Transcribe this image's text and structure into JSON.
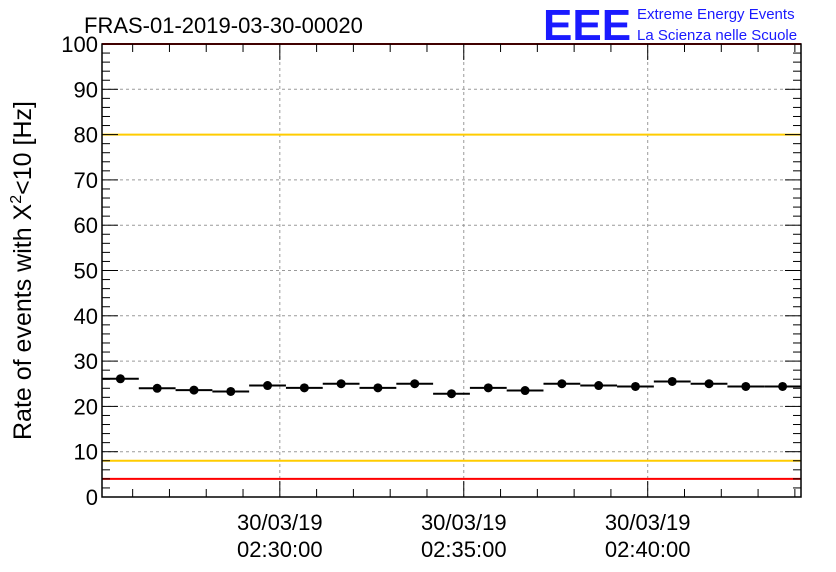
{
  "chart_data": {
    "type": "scatter",
    "title": "FRAS-01-2019-03-30-00020",
    "ylabel_main": "Rate of events with X",
    "ylabel_sup": "2",
    "ylabel_tail": "<10 [Hz]",
    "ylim": [
      0,
      100
    ],
    "yticks": [
      0,
      10,
      20,
      30,
      40,
      50,
      60,
      70,
      80,
      90,
      100
    ],
    "grid": true,
    "x_range": [
      "30/03/19 02:25:10",
      "30/03/19 02:44:10"
    ],
    "x_ticks": [
      {
        "time": "02:30:00",
        "date": "30/03/19"
      },
      {
        "time": "02:35:00",
        "date": "30/03/19"
      },
      {
        "time": "02:40:00",
        "date": "30/03/19"
      }
    ],
    "bin_width_s": 60,
    "series": [
      {
        "x": [
          "02:25:40",
          "02:26:40",
          "02:27:40",
          "02:28:40",
          "02:29:40",
          "02:30:40",
          "02:31:40",
          "02:32:40",
          "02:33:40",
          "02:34:40",
          "02:35:40",
          "02:36:40",
          "02:37:40",
          "02:38:40",
          "02:39:40",
          "02:40:40",
          "02:41:40",
          "02:42:40",
          "02:43:40"
        ],
        "values": [
          26.1,
          24.0,
          23.6,
          23.3,
          24.6,
          24.1,
          25.0,
          24.1,
          25.0,
          22.8,
          24.1,
          23.5,
          25.0,
          24.6,
          24.4,
          25.5,
          25.0,
          24.4,
          24.4
        ]
      }
    ],
    "reference_lines": [
      {
        "value": 100,
        "color": "#ff0000"
      },
      {
        "value": 80,
        "color": "#ffcc00"
      },
      {
        "value": 8,
        "color": "#ffcc00"
      },
      {
        "value": 4,
        "color": "#ff0000"
      }
    ]
  },
  "logo": {
    "mark": "EEE",
    "line1": "Extreme Energy Events",
    "line2": "La Scienza nelle Scuole",
    "color": "#1a1aff"
  }
}
